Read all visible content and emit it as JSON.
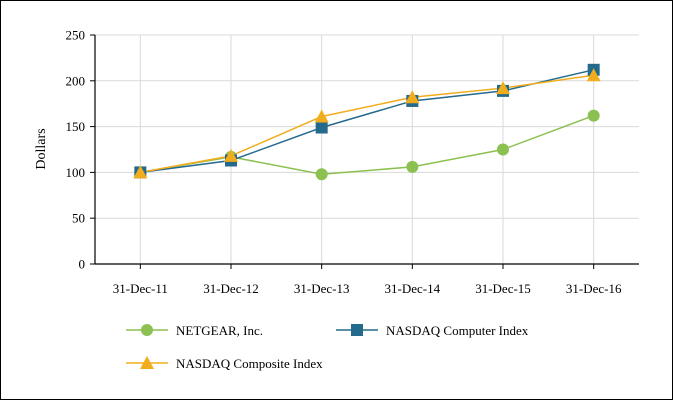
{
  "chart_data": {
    "type": "line",
    "title": "",
    "xlabel": "",
    "ylabel": "Dollars",
    "categories": [
      "31-Dec-11",
      "31-Dec-12",
      "31-Dec-13",
      "31-Dec-14",
      "31-Dec-15",
      "31-Dec-16"
    ],
    "ylim": [
      0,
      250
    ],
    "yticks": [
      0,
      50,
      100,
      150,
      200,
      250
    ],
    "grid": true,
    "legend_position": "bottom",
    "series": [
      {
        "name": "NETGEAR, Inc.",
        "values": [
          100,
          117,
          98,
          106,
          125,
          162
        ],
        "color": "#8cc051",
        "marker": "circle"
      },
      {
        "name": "NASDAQ Computer Index",
        "values": [
          100,
          113,
          149,
          178,
          189,
          212
        ],
        "color": "#246a8c",
        "marker": "square"
      },
      {
        "name": "NASDAQ Composite Index",
        "values": [
          100,
          118,
          161,
          182,
          192,
          206
        ],
        "color": "#f2ad1c",
        "marker": "triangle"
      }
    ]
  }
}
